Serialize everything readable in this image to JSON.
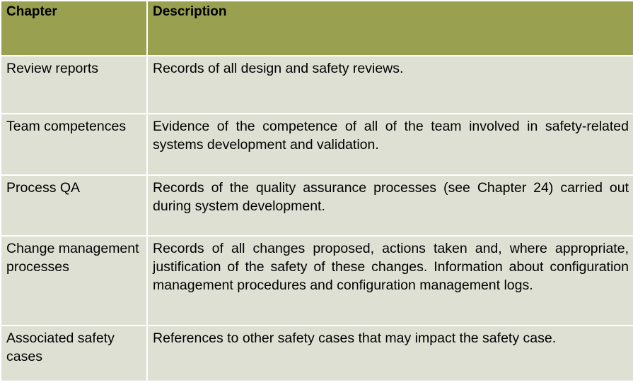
{
  "table": {
    "headers": {
      "chapter": "Chapter",
      "description": "Description"
    },
    "rows": [
      {
        "chapter": "Review reports",
        "description": "Records of all design and safety reviews."
      },
      {
        "chapter": "Team competences",
        "description": "Evidence of the competence of all of the team involved in safety-related systems development and validation."
      },
      {
        "chapter": "Process QA",
        "description": "Records of the quality assurance processes (see Chapter 24) carried out during system development."
      },
      {
        "chapter": "Change management processes",
        "description": "Records of all changes proposed, actions taken and, where appropriate, justification of the safety of these changes. Information about configuration management procedures and configuration management logs."
      },
      {
        "chapter": "Associated safety cases",
        "description": "References to other safety cases that may impact the safety case."
      }
    ]
  },
  "colors": {
    "header_bg": "#99a04f",
    "row_bg": "#dfe0d4",
    "border": "#ffffff"
  }
}
